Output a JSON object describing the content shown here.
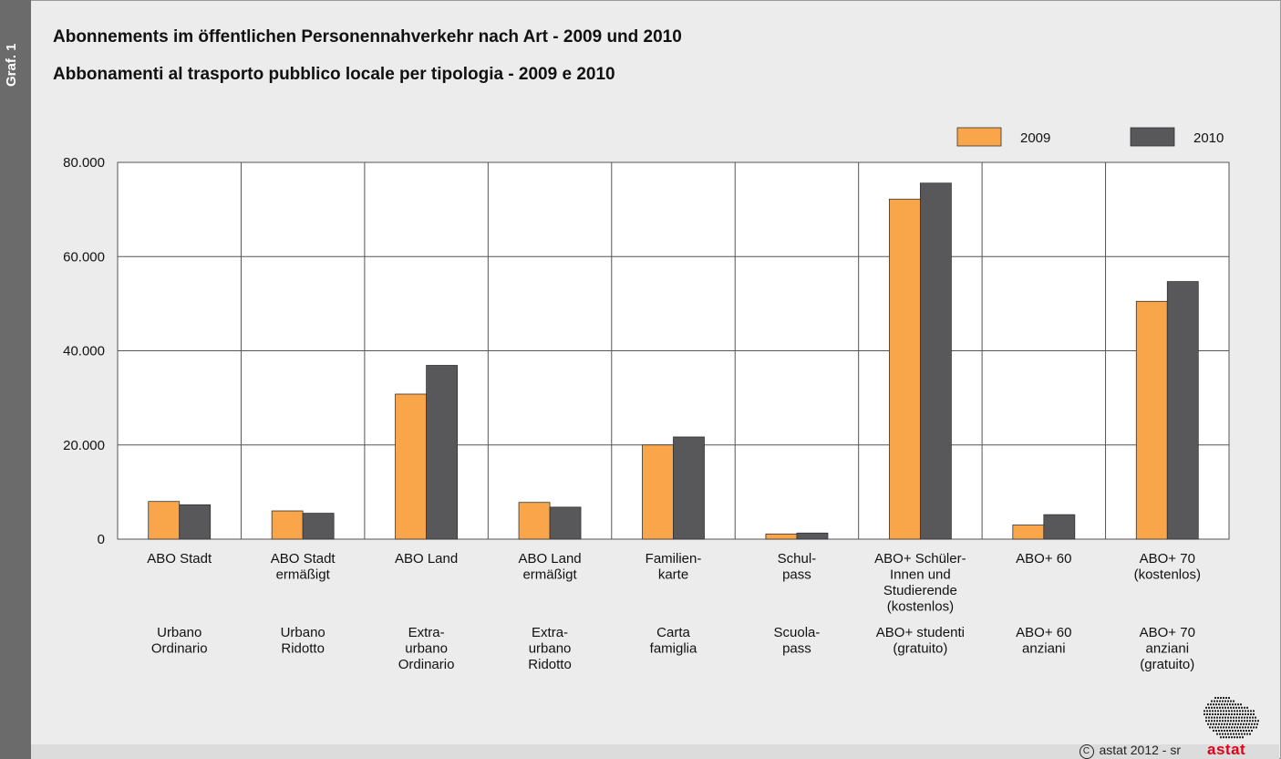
{
  "sidebar_label": "Graf. 1",
  "titles": {
    "de": "Abonnements im öffentlichen Personennahverkehr nach Art - 2009 und 2010",
    "it": "Abbonamenti al trasporto pubblico locale per tipologia - 2009 e 2010"
  },
  "credit": "astat 2012 - sr",
  "copyright_symbol": "C",
  "logo_word": "astat",
  "logo_icon": "south-tyrol-map-dots-icon",
  "chart_data": {
    "type": "bar",
    "categories": [
      {
        "de": [
          "ABO Stadt"
        ],
        "it": [
          "Urbano",
          "Ordinario"
        ]
      },
      {
        "de": [
          "ABO Stadt",
          "ermäßigt"
        ],
        "it": [
          "Urbano",
          "Ridotto"
        ]
      },
      {
        "de": [
          "ABO Land"
        ],
        "it": [
          "Extra-",
          "urbano",
          "Ordinario"
        ]
      },
      {
        "de": [
          "ABO Land",
          "ermäßigt"
        ],
        "it": [
          "Extra-",
          "urbano",
          "Ridotto"
        ]
      },
      {
        "de": [
          "Familien-",
          "karte"
        ],
        "it": [
          "Carta",
          "famiglia"
        ]
      },
      {
        "de": [
          "Schul-",
          "pass"
        ],
        "it": [
          "Scuola-",
          "pass"
        ]
      },
      {
        "de": [
          "ABO+ Schüler-",
          "Innen und",
          "Studierende",
          "(kostenlos)"
        ],
        "it": [
          "ABO+ studenti",
          "(gratuito)"
        ]
      },
      {
        "de": [
          "ABO+ 60"
        ],
        "it": [
          "ABO+ 60",
          "anziani"
        ]
      },
      {
        "de": [
          "ABO+ 70",
          "(kostenlos)"
        ],
        "it": [
          "ABO+ 70",
          "anziani",
          "(gratuito)"
        ]
      }
    ],
    "series": [
      {
        "name": "2009",
        "color": "#f9a54a",
        "values": [
          8000,
          6000,
          30800,
          7800,
          20000,
          1100,
          72200,
          3000,
          50500
        ]
      },
      {
        "name": "2010",
        "color": "#58585a",
        "values": [
          7300,
          5500,
          36900,
          6800,
          21700,
          1300,
          75600,
          5200,
          54700
        ]
      }
    ],
    "ylim": [
      0,
      80000
    ],
    "yticks": [
      0,
      20000,
      40000,
      60000,
      80000
    ],
    "ytick_labels": [
      "0",
      "20.000",
      "40.000",
      "60.000",
      "80.000"
    ],
    "grid": true,
    "legend_position": "top-right"
  }
}
